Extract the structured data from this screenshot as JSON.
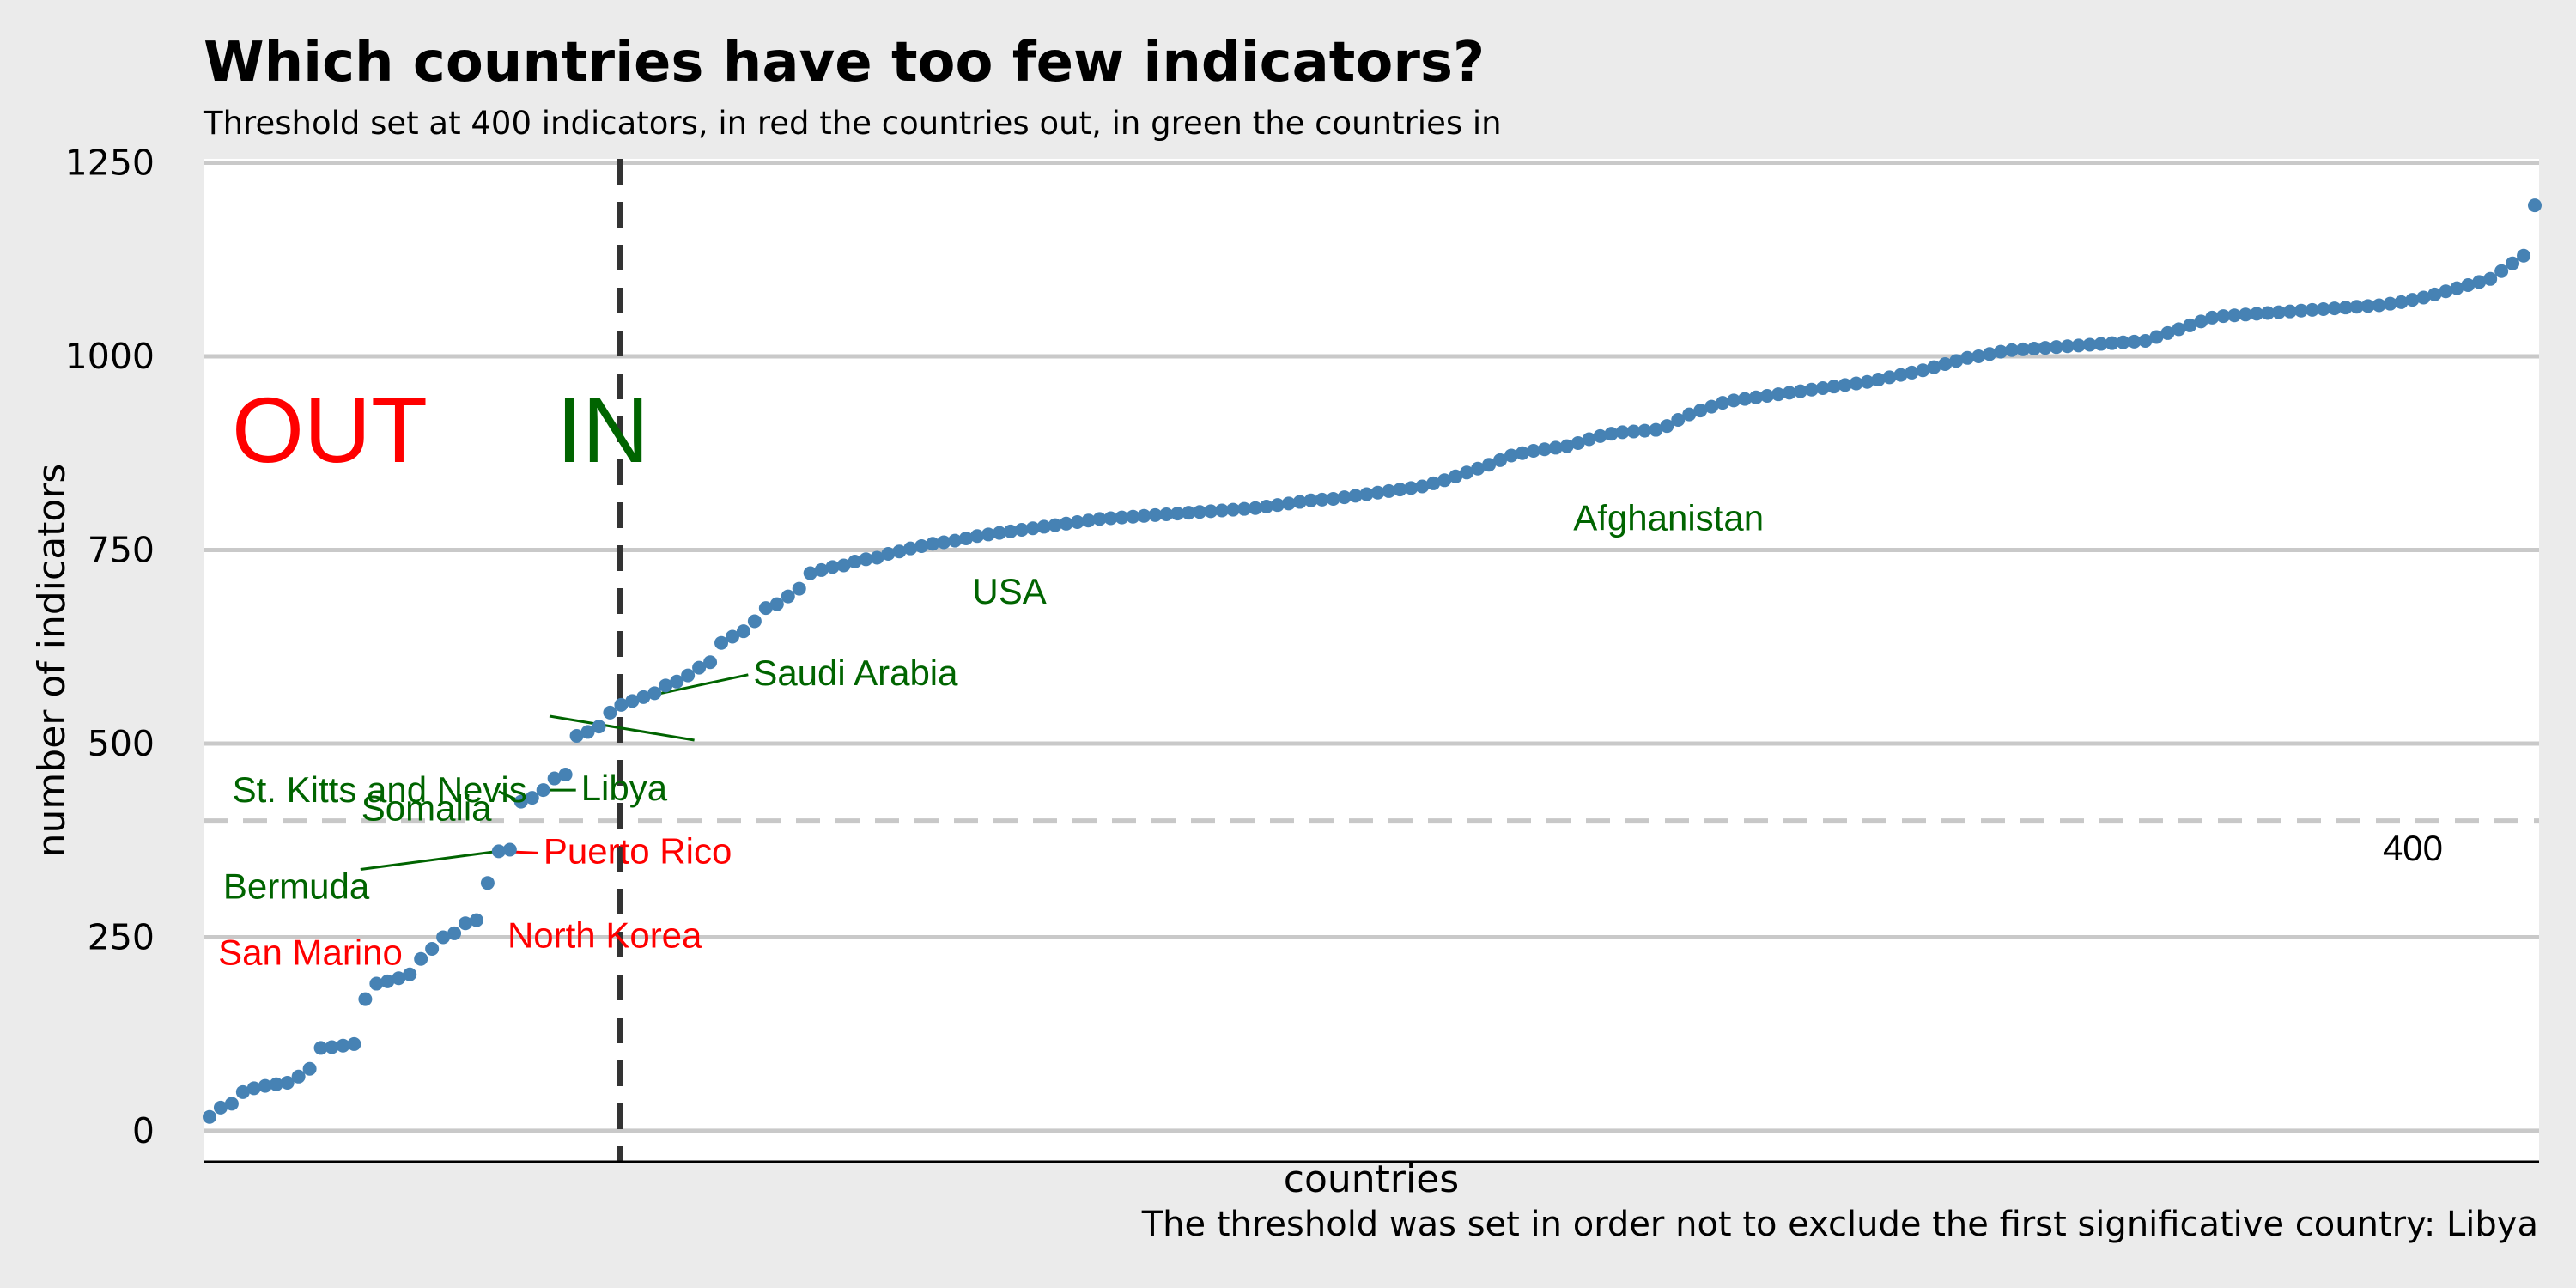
{
  "chart_data": {
    "type": "scatter",
    "title": "Which countries have too few indicators?",
    "subtitle": "Threshold set at 400 indicators, in red the countries out, in green the countries in",
    "caption": "The threshold was set in order not to exclude the first significative country: Libya",
    "xlabel": "countries",
    "ylabel": "number of indicators",
    "ylim": [
      -40,
      1255
    ],
    "yticks": [
      0,
      250,
      500,
      750,
      1000,
      1250
    ],
    "grid": "horizontal",
    "point_color": "#4682b4",
    "threshold": {
      "value": 400,
      "label": "400",
      "color": "#c8c8c8"
    },
    "cutoff_rank": 39,
    "y": [
      18,
      30,
      35,
      50,
      55,
      58,
      60,
      62,
      70,
      80,
      107,
      108,
      110,
      112,
      170,
      190,
      193,
      197,
      202,
      222,
      235,
      250,
      255,
      268,
      272,
      320,
      361,
      363,
      425,
      430,
      440,
      455,
      460,
      510,
      515,
      522,
      540,
      550,
      555,
      560,
      565,
      575,
      580,
      588,
      598,
      605,
      630,
      638,
      645,
      658,
      675,
      680,
      690,
      700,
      720,
      724,
      728,
      730,
      735,
      738,
      740,
      745,
      748,
      752,
      755,
      758,
      760,
      762,
      765,
      768,
      770,
      772,
      774,
      776,
      778,
      780,
      782,
      784,
      786,
      788,
      790,
      791,
      792,
      793,
      794,
      795,
      796,
      797,
      798,
      799,
      800,
      801,
      802,
      803,
      804,
      806,
      808,
      810,
      812,
      814,
      815,
      816,
      818,
      820,
      822,
      824,
      826,
      828,
      830,
      832,
      836,
      840,
      845,
      850,
      855,
      860,
      866,
      872,
      875,
      878,
      880,
      882,
      884,
      888,
      893,
      897,
      900,
      902,
      903,
      904,
      905,
      910,
      918,
      925,
      930,
      935,
      940,
      943,
      945,
      947,
      949,
      951,
      953,
      955,
      957,
      959,
      961,
      963,
      965,
      967,
      970,
      973,
      976,
      979,
      982,
      986,
      990,
      994,
      998,
      1000,
      1003,
      1006,
      1008,
      1009,
      1010,
      1011,
      1012,
      1013,
      1014,
      1015,
      1016,
      1017,
      1018,
      1019,
      1020,
      1025,
      1030,
      1035,
      1040,
      1045,
      1050,
      1052,
      1053,
      1054,
      1055,
      1056,
      1057,
      1058,
      1059,
      1060,
      1061,
      1062,
      1063,
      1064,
      1065,
      1066,
      1068,
      1070,
      1073,
      1076,
      1080,
      1084,
      1088,
      1092,
      1096,
      1100,
      1110,
      1120,
      1130,
      1195
    ],
    "annotations": {
      "out": [
        {
          "label": "San Marino",
          "rank": 22
        },
        {
          "label": "North Korea",
          "rank": 25
        },
        {
          "label": "Puerto Rico",
          "rank": 27
        }
      ],
      "in": [
        {
          "label": "Bermuda",
          "rank": 28
        },
        {
          "label": "Somalia",
          "rank": 29
        },
        {
          "label": "Libya",
          "rank": 31
        },
        {
          "label": "St. Kitts and Nevis",
          "rank": 33
        },
        {
          "label": "Saudi Arabia",
          "rank": 40
        },
        {
          "label": "USA",
          "rank": 62
        },
        {
          "label": "Afghanistan",
          "rank": 112
        }
      ]
    },
    "region_labels": {
      "out": "OUT",
      "in": "IN"
    },
    "colors": {
      "out": "#ff0000",
      "in": "#006400"
    }
  }
}
